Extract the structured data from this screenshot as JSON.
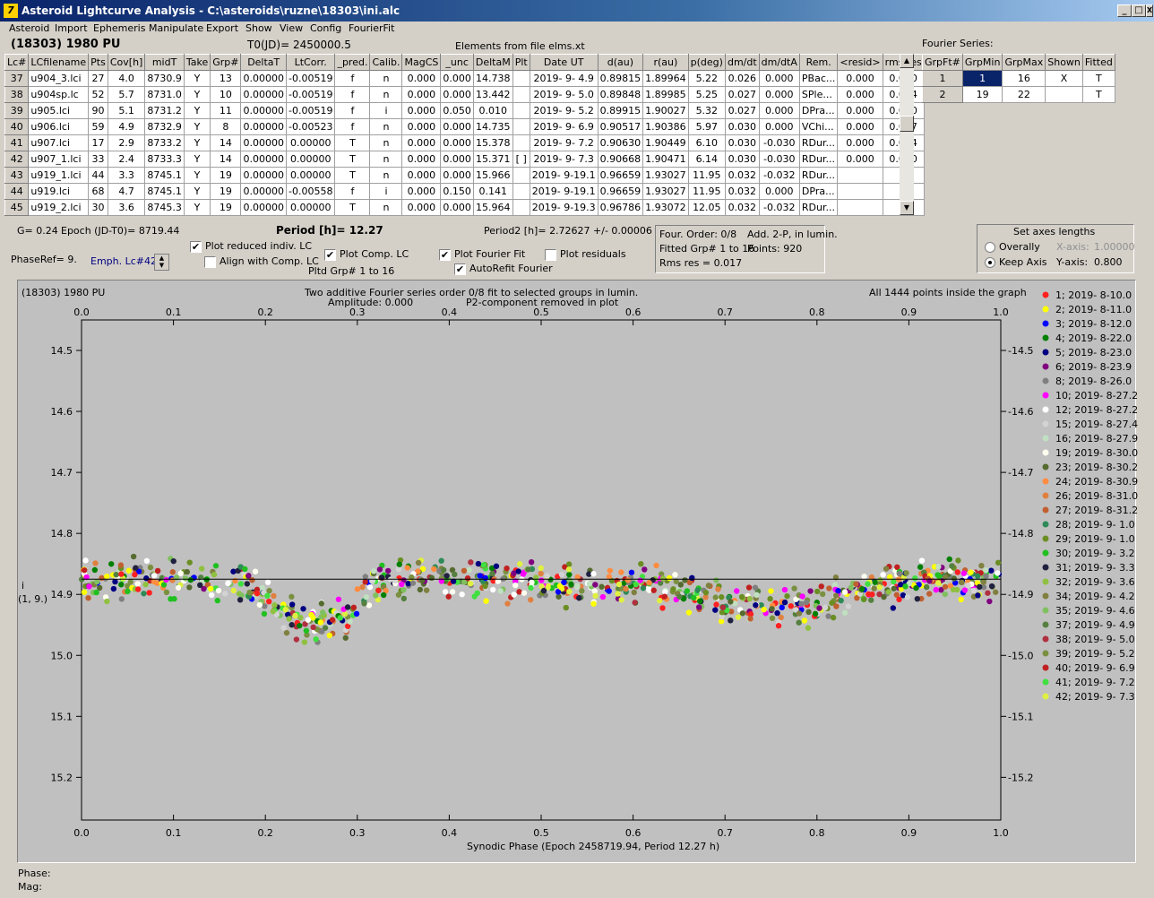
{
  "window": {
    "title": "Asteroid Lightcurve Analysis - C:\\asteroids\\ruzne\\18303\\ini.alc",
    "icon": "app-icon",
    "controls": [
      "_",
      "□",
      "X"
    ]
  },
  "menu": [
    "Asteroid",
    "Import",
    "Ephemeris",
    "Manipulate",
    "Export",
    "Show",
    "View",
    "Config",
    "FourierFit"
  ],
  "header": {
    "asteroid": "(18303) 1980 PU",
    "t0": "T0(JD)= 2450000.5",
    "elements": "Elements from file elms.xt"
  },
  "table": {
    "columns": [
      "Lc#",
      "LCfilename",
      "Pts",
      "Cov[h]",
      "midT",
      "Take",
      "Grp#",
      "DeltaT",
      "LtCorr.",
      "_pred.",
      "Calib.",
      "MagCS",
      "_unc",
      "DeltaM",
      "Plt",
      "Date UT",
      "d(au)",
      "r(au)",
      "p(deg)",
      "dm/dt",
      "dm/dtA",
      "Rem.",
      "<resid>",
      "rms res"
    ],
    "rows": [
      [
        "37",
        "u904_3.lci",
        "27",
        "4.0",
        "8730.9",
        "Y",
        "13",
        "0.00000",
        "-0.00519",
        "f",
        "n",
        "0.000",
        "0.000",
        "14.738",
        "",
        "2019- 9- 4.9",
        "0.89815",
        "1.89964",
        "5.22",
        "0.026",
        "0.000",
        "PBac...",
        "0.000",
        "0.010"
      ],
      [
        "38",
        "u904sp.lc",
        "52",
        "5.7",
        "8731.0",
        "Y",
        "10",
        "0.00000",
        "-0.00519",
        "f",
        "n",
        "0.000",
        "0.000",
        "13.442",
        "",
        "2019- 9- 5.0",
        "0.89848",
        "1.89985",
        "5.25",
        "0.027",
        "0.000",
        "SPle...",
        "0.000",
        "0.014"
      ],
      [
        "39",
        "u905.lci",
        "90",
        "5.1",
        "8731.2",
        "Y",
        "11",
        "0.00000",
        "-0.00519",
        "f",
        "i",
        "0.000",
        "0.050",
        "0.010",
        "",
        "2019- 9- 5.2",
        "0.89915",
        "1.90027",
        "5.32",
        "0.027",
        "0.000",
        "DPra...",
        "0.000",
        "0.020"
      ],
      [
        "40",
        "u906.lci",
        "59",
        "4.9",
        "8732.9",
        "Y",
        "8",
        "0.00000",
        "-0.00523",
        "f",
        "n",
        "0.000",
        "0.000",
        "14.735",
        "",
        "2019- 9- 6.9",
        "0.90517",
        "1.90386",
        "5.97",
        "0.030",
        "0.000",
        "VChi...",
        "0.000",
        "0.017"
      ],
      [
        "41",
        "u907.lci",
        "17",
        "2.9",
        "8733.2",
        "Y",
        "14",
        "0.00000",
        "0.00000",
        "T",
        "n",
        "0.000",
        "0.000",
        "15.378",
        "",
        "2019- 9- 7.2",
        "0.90630",
        "1.90449",
        "6.10",
        "0.030",
        "-0.030",
        "RDur...",
        "0.000",
        "0.004"
      ],
      [
        "42",
        "u907_1.lci",
        "33",
        "2.4",
        "8733.3",
        "Y",
        "14",
        "0.00000",
        "0.00000",
        "T",
        "n",
        "0.000",
        "0.000",
        "15.371",
        "[ ]",
        "2019- 9- 7.3",
        "0.90668",
        "1.90471",
        "6.14",
        "0.030",
        "-0.030",
        "RDur...",
        "0.000",
        "0.010"
      ],
      [
        "43",
        "u919_1.lci",
        "44",
        "3.3",
        "8745.1",
        "Y",
        "19",
        "0.00000",
        "0.00000",
        "T",
        "n",
        "0.000",
        "0.000",
        "15.966",
        "",
        "2019- 9-19.1",
        "0.96659",
        "1.93027",
        "11.95",
        "0.032",
        "-0.032",
        "RDur...",
        "",
        ""
      ],
      [
        "44",
        "u919.lci",
        "68",
        "4.7",
        "8745.1",
        "Y",
        "19",
        "0.00000",
        "-0.00558",
        "f",
        "i",
        "0.000",
        "0.150",
        "0.141",
        "",
        "2019- 9-19.1",
        "0.96659",
        "1.93027",
        "11.95",
        "0.032",
        "0.000",
        "DPra...",
        "",
        ""
      ],
      [
        "45",
        "u919_2.lci",
        "30",
        "3.6",
        "8745.3",
        "Y",
        "19",
        "0.00000",
        "0.00000",
        "T",
        "n",
        "0.000",
        "0.000",
        "15.964",
        "",
        "2019- 9-19.3",
        "0.96786",
        "1.93072",
        "12.05",
        "0.032",
        "-0.032",
        "RDur...",
        "",
        ""
      ]
    ]
  },
  "fourier_series": {
    "title": "Fourier Series:",
    "columns": [
      "GrpFt#",
      "GrpMin",
      "GrpMax",
      "Shown",
      "Fitted"
    ],
    "rows": [
      [
        "1",
        "1",
        "16",
        "X",
        "T"
      ],
      [
        "2",
        "19",
        "22",
        "",
        "T"
      ]
    ]
  },
  "params": {
    "g": "G= 0.24",
    "epoch": "Epoch (JD-T0)= 8719.44",
    "period": "Period [h]= 12.27",
    "period2": "Period2 [h]= 2.72627 +/- 0.00006",
    "phaseref": "PhaseRef= 9.",
    "emph": "Emph. Lc#42:",
    "pltd_grp": "Pltd Grp#  1   to   16"
  },
  "checkboxes": [
    {
      "label": "Plot reduced indiv. LC",
      "checked": true
    },
    {
      "label": "Align with Comp. LC",
      "checked": false
    },
    {
      "label": "Plot Comp. LC",
      "checked": true
    },
    {
      "label": "Plot Fourier Fit",
      "checked": true
    },
    {
      "label": "AutoRefit Fourier",
      "checked": true
    },
    {
      "label": "Plot residuals",
      "checked": false
    }
  ],
  "fit_info": {
    "order": "Four. Order:  0/8",
    "add": "Add. 2-P, in lumin.",
    "fitted": "Fitted Grp# 1 to 16",
    "points": "Points: 920",
    "rms": "Rms res      = 0.017"
  },
  "axes_panel": {
    "title": "Set axes lengths",
    "overally": "Overally",
    "keep": "Keep Axis",
    "xaxis_label": "X-axis:",
    "xaxis_val": "1.00000",
    "yaxis_label": "Y-axis:",
    "yaxis_val": "0.800"
  },
  "plot": {
    "name": "(18303) 1980 PU",
    "subtitle1": "Two additive Fourier series order 0/8 fit to selected groups in lumin.",
    "subtitle2": "Amplitude: 0.000",
    "subtitle3": "P2-component removed in plot",
    "points_note": "All 1444 points inside the graph",
    "xlabel": "Synodic Phase (Epoch 2458719.94, Period 12.27 h)",
    "ylabel1": "i",
    "ylabel2": "(1, 9.)"
  },
  "chart_data": {
    "type": "scatter",
    "xlim": [
      0.0,
      1.0
    ],
    "ylim": [
      14.5,
      15.3
    ],
    "yreversed": true,
    "xticks": [
      0.0,
      0.1,
      0.2,
      0.3,
      0.4,
      0.5,
      0.6,
      0.7,
      0.8,
      0.9,
      1.0
    ],
    "yticks": [
      14.5,
      14.6,
      14.7,
      14.8,
      14.9,
      15.0,
      15.1,
      15.2
    ],
    "fit_line_y": 14.875,
    "grid": false,
    "legend_placement": "right",
    "profile": [
      [
        0.0,
        14.875
      ],
      [
        0.1,
        14.875
      ],
      [
        0.18,
        14.88
      ],
      [
        0.2,
        14.9
      ],
      [
        0.22,
        14.935
      ],
      [
        0.25,
        14.95
      ],
      [
        0.27,
        14.945
      ],
      [
        0.29,
        14.93
      ],
      [
        0.31,
        14.89
      ],
      [
        0.35,
        14.87
      ],
      [
        0.45,
        14.875
      ],
      [
        0.55,
        14.885
      ],
      [
        0.65,
        14.89
      ],
      [
        0.7,
        14.915
      ],
      [
        0.75,
        14.925
      ],
      [
        0.8,
        14.92
      ],
      [
        0.85,
        14.895
      ],
      [
        0.9,
        14.88
      ],
      [
        0.95,
        14.875
      ],
      [
        1.0,
        14.875
      ]
    ],
    "series": [
      {
        "name": "1; 2019- 8-10.0",
        "color": "#ff2020"
      },
      {
        "name": "2; 2019- 8-11.0",
        "color": "#ffff00"
      },
      {
        "name": "3; 2019- 8-12.0",
        "color": "#0000ff"
      },
      {
        "name": "4; 2019- 8-22.0",
        "color": "#008000"
      },
      {
        "name": "5; 2019- 8-23.0",
        "color": "#000080"
      },
      {
        "name": "6; 2019- 8-23.9",
        "color": "#800080"
      },
      {
        "name": "8; 2019- 8-26.0",
        "color": "#808080"
      },
      {
        "name": "10; 2019- 8-27.2",
        "color": "#ff00ff"
      },
      {
        "name": "12; 2019- 8-27.2",
        "color": "#ffffff"
      },
      {
        "name": "15; 2019- 8-27.4",
        "color": "#d3d3d3"
      },
      {
        "name": "16; 2019- 8-27.9",
        "color": "#c0e0c0"
      },
      {
        "name": "19; 2019- 8-30.0",
        "color": "#fffff0"
      },
      {
        "name": "23; 2019- 8-30.2",
        "color": "#556b2f"
      },
      {
        "name": "24; 2019- 8-30.9",
        "color": "#ff8c40"
      },
      {
        "name": "26; 2019- 8-31.0",
        "color": "#e08040"
      },
      {
        "name": "27; 2019- 8-31.2",
        "color": "#c06030"
      },
      {
        "name": "28; 2019- 9- 1.0",
        "color": "#2e8b57"
      },
      {
        "name": "29; 2019- 9- 1.0",
        "color": "#6b8e23"
      },
      {
        "name": "30; 2019- 9- 3.2",
        "color": "#20c020"
      },
      {
        "name": "31; 2019- 9- 3.3",
        "color": "#202040"
      },
      {
        "name": "32; 2019- 9- 3.6",
        "color": "#90c040"
      },
      {
        "name": "34; 2019- 9- 4.2",
        "color": "#808040"
      },
      {
        "name": "35; 2019- 9- 4.6",
        "color": "#80c060"
      },
      {
        "name": "37; 2019- 9- 4.9",
        "color": "#558040"
      },
      {
        "name": "38; 2019- 9- 5.0",
        "color": "#b03040"
      },
      {
        "name": "39; 2019- 9- 5.2",
        "color": "#7a9040"
      },
      {
        "name": "40; 2019- 9- 6.9",
        "color": "#c02020"
      },
      {
        "name": "41; 2019- 9- 7.2",
        "color": "#40e040"
      },
      {
        "name": "42; 2019- 9- 7.3",
        "color": "#e0f040"
      }
    ]
  },
  "status": {
    "phase": "Phase:",
    "mag": "Mag:"
  }
}
